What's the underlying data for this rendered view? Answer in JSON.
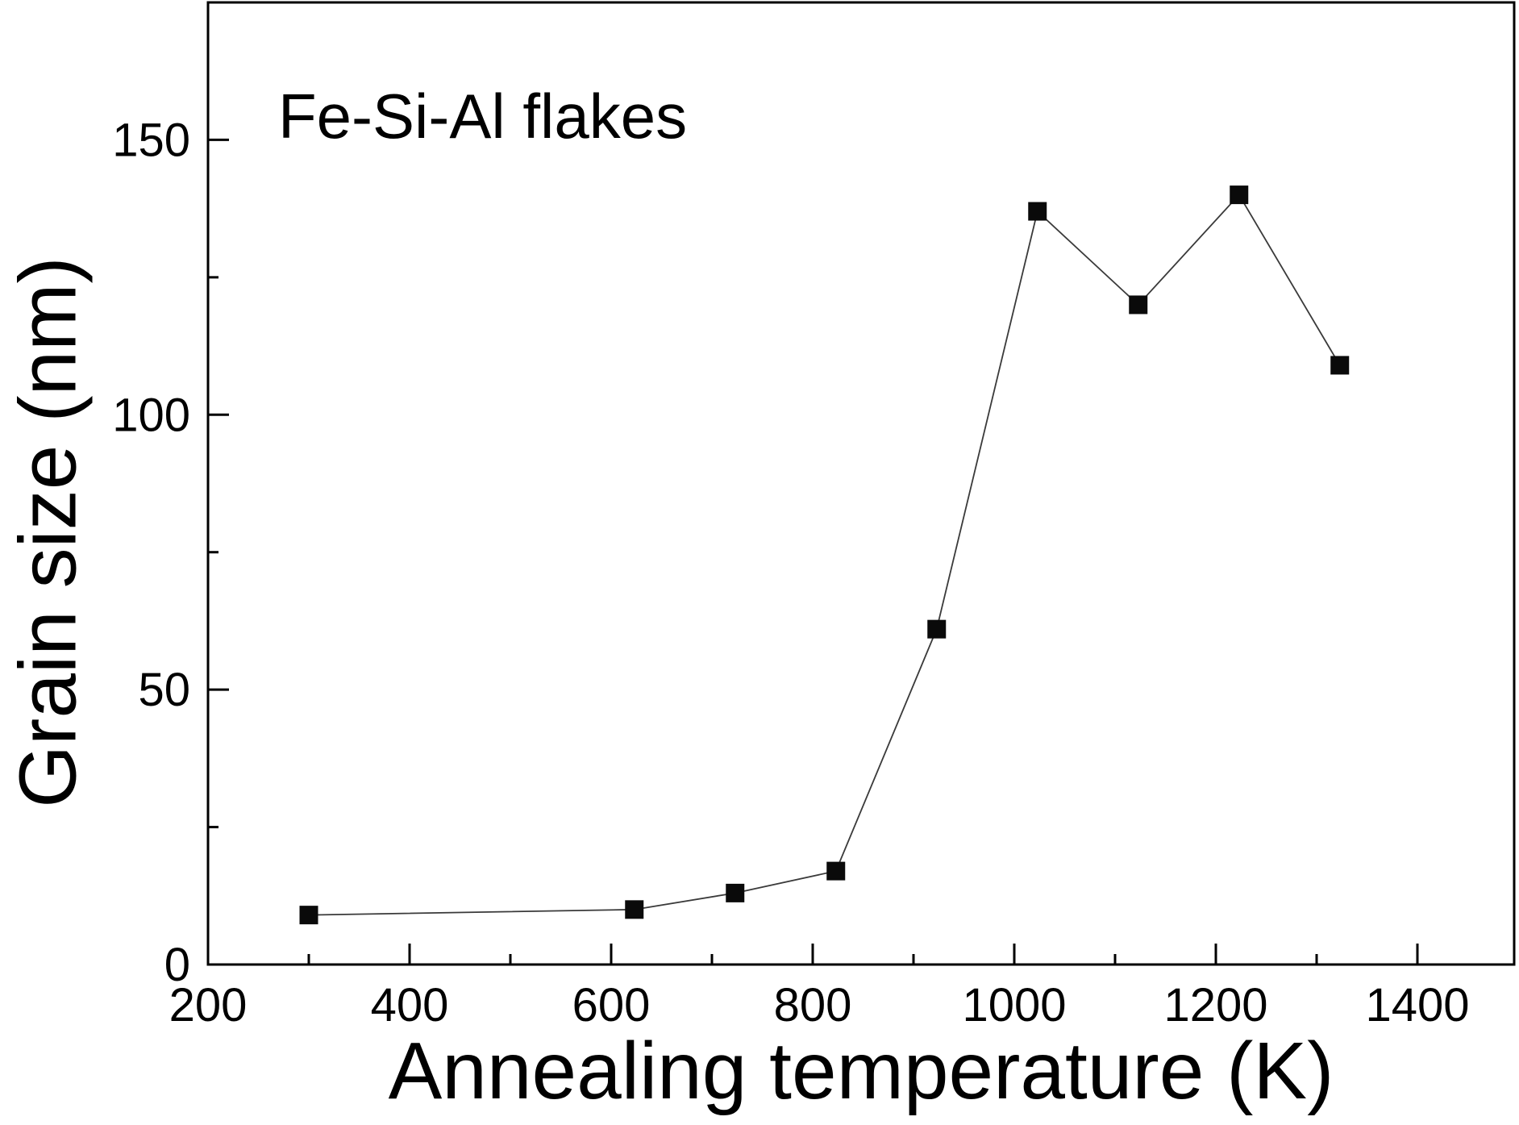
{
  "figure": {
    "background_color": "#ffffff",
    "axis_color": "#000000",
    "marker_color": "#0a0a0a",
    "line_color": "#3a3a3a"
  },
  "chart_data": {
    "type": "line",
    "title": "",
    "annotation": "Fe-Si-Al flakes",
    "xlabel": "Annealing temperature (K)",
    "ylabel": "Grain size (nm)",
    "xlim": [
      200,
      1496
    ],
    "ylim": [
      0,
      175
    ],
    "x_major_ticks": [
      200,
      400,
      600,
      800,
      1000,
      1200,
      1400
    ],
    "x_minor_ticks": [
      300,
      500,
      700,
      900,
      1100,
      1300
    ],
    "y_major_ticks": [
      0,
      50,
      100,
      150
    ],
    "y_minor_ticks": [
      25,
      75,
      125
    ],
    "grid": false,
    "legend": false,
    "series": [
      {
        "name": "Fe-Si-Al flakes",
        "marker": "filled-square",
        "line_style": "thin-solid",
        "x": [
          300,
          623,
          723,
          823,
          923,
          1023,
          1123,
          1223,
          1323
        ],
        "y": [
          9,
          10,
          13,
          17,
          61,
          137,
          120,
          140,
          109
        ]
      }
    ]
  }
}
